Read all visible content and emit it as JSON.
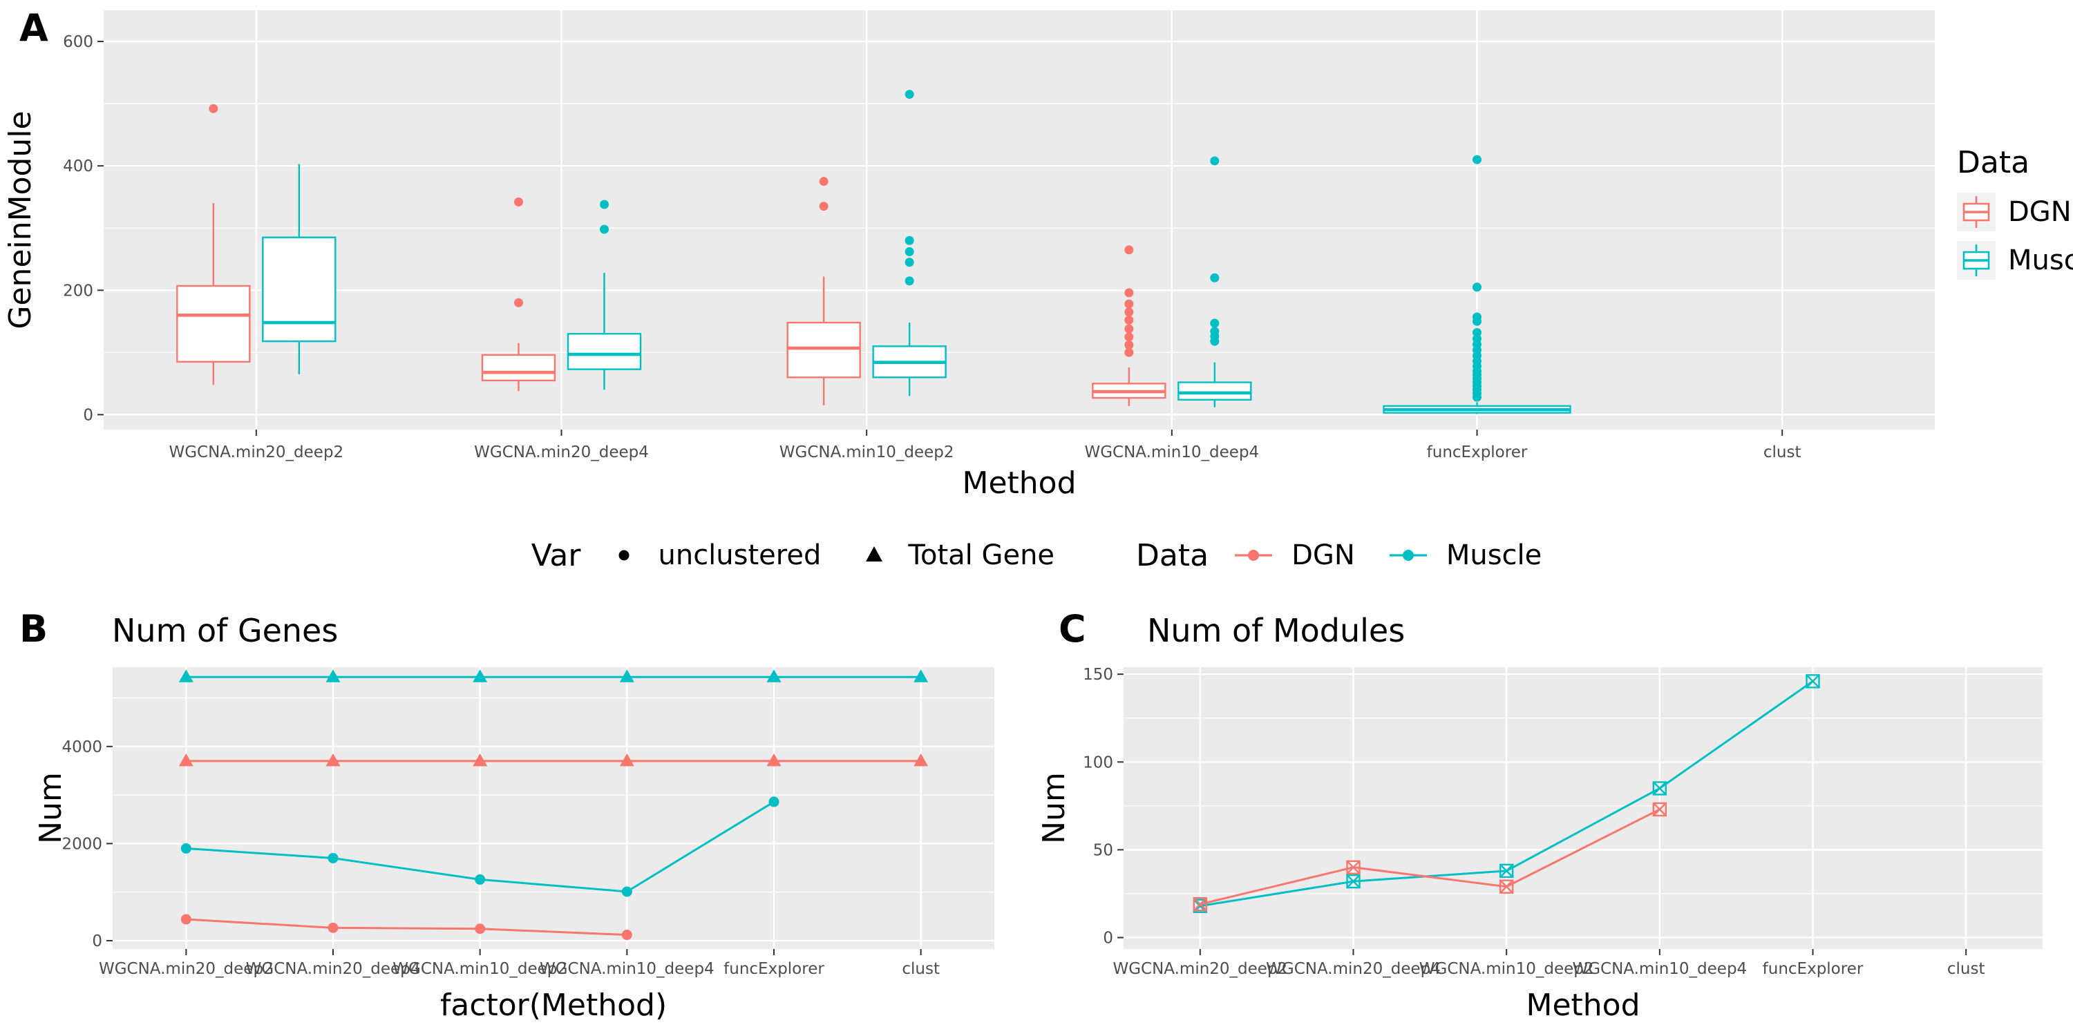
{
  "colors": {
    "dgn": "#F8766D",
    "muscle": "#00BFC4",
    "panel_bg": "#EBEBEB",
    "grid": "#FFFFFF",
    "tick_text": "#4D4D4D",
    "axis_tick": "#333333",
    "text": "#000000",
    "legend_key_bg": "#F2F2F2"
  },
  "panel_a": {
    "label": "A",
    "legend": {
      "title": "Data",
      "items": [
        {
          "label": "DGN",
          "color_key": "dgn"
        },
        {
          "label": "Muscle",
          "color_key": "muscle"
        }
      ]
    }
  },
  "panel_b": {
    "label": "B",
    "title": "Num of Genes"
  },
  "panel_c": {
    "label": "C",
    "title": "Num of Modules"
  },
  "shared_legend": {
    "var_title": "Var",
    "var_items": [
      {
        "marker": "circle",
        "label": "unclustered"
      },
      {
        "marker": "triangle",
        "label": "Total Gene"
      }
    ],
    "data_title": "Data",
    "data_items": [
      {
        "label": "DGN",
        "color_key": "dgn"
      },
      {
        "label": "Muscle",
        "color_key": "muscle"
      }
    ]
  },
  "chart_data": [
    {
      "id": "A",
      "type": "boxplot",
      "panel_label": "A",
      "x_label": "Method",
      "y_label": "GeneinModule",
      "y_ticks": [
        0,
        200,
        400,
        600
      ],
      "y_range": [
        -24,
        650
      ],
      "grid": true,
      "legend_position": "right",
      "categories": [
        "WGCNA.min20_deep2",
        "WGCNA.min20_deep4",
        "WGCNA.min10_deep2",
        "WGCNA.min10_deep4",
        "funcExplorer",
        "clust"
      ],
      "series": [
        {
          "name": "DGN",
          "color_key": "dgn",
          "boxes": [
            {
              "cat": 0,
              "low": 48,
              "q1": 85,
              "median": 160,
              "q3": 207,
              "high": 340,
              "outliers": [
                492
              ]
            },
            {
              "cat": 1,
              "low": 38,
              "q1": 55,
              "median": 68,
              "q3": 96,
              "high": 115,
              "outliers": [
                180,
                342
              ]
            },
            {
              "cat": 2,
              "low": 15,
              "q1": 60,
              "median": 107,
              "q3": 148,
              "high": 222,
              "outliers": [
                335,
                375
              ]
            },
            {
              "cat": 3,
              "low": 14,
              "q1": 27,
              "median": 37,
              "q3": 50,
              "high": 76,
              "outliers": [
                100,
                112,
                125,
                138,
                152,
                165,
                178,
                196,
                265
              ]
            }
          ]
        },
        {
          "name": "Muscle",
          "color_key": "muscle",
          "boxes": [
            {
              "cat": 0,
              "low": 65,
              "q1": 118,
              "median": 148,
              "q3": 285,
              "high": 403,
              "outliers": []
            },
            {
              "cat": 1,
              "low": 40,
              "q1": 73,
              "median": 97,
              "q3": 130,
              "high": 228,
              "outliers": [
                298,
                338
              ]
            },
            {
              "cat": 2,
              "low": 30,
              "q1": 60,
              "median": 84,
              "q3": 110,
              "high": 148,
              "outliers": [
                215,
                245,
                262,
                280,
                515
              ]
            },
            {
              "cat": 3,
              "low": 12,
              "q1": 24,
              "median": 35,
              "q3": 52,
              "high": 84,
              "outliers": [
                118,
                126,
                134,
                147,
                220,
                408
              ]
            },
            {
              "cat": 4,
              "low": 1,
              "q1": 3,
              "median": 8,
              "q3": 14,
              "high": 20,
              "wide": true,
              "outliers": [
                28,
                34,
                40,
                46,
                52,
                58,
                64,
                70,
                78,
                86,
                95,
                104,
                113,
                122,
                132,
                150,
                157,
                205,
                410
              ]
            }
          ]
        }
      ]
    },
    {
      "id": "B",
      "type": "line",
      "panel_label": "B",
      "title": "Num of Genes",
      "x_label": "factor(Method)",
      "y_label": "Num",
      "y_ticks": [
        0,
        2000,
        4000
      ],
      "y_range": [
        -171,
        5633
      ],
      "grid": true,
      "categories": [
        "WGCNA.min20_deep2",
        "WGCNA.min20_deep4",
        "WGCNA.min10_deep2",
        "WGCNA.min10_deep4",
        "funcExplorer",
        "clust"
      ],
      "series": [
        {
          "name": "Total Gene - Muscle",
          "color_key": "muscle",
          "marker": "triangle",
          "values": [
            5430,
            5430,
            5430,
            5430,
            5430,
            5430
          ]
        },
        {
          "name": "Total Gene - DGN",
          "color_key": "dgn",
          "marker": "triangle",
          "values": [
            3700,
            3700,
            3700,
            3700,
            3700,
            3700
          ]
        },
        {
          "name": "unclustered - Muscle",
          "color_key": "muscle",
          "marker": "circle",
          "values": [
            1900,
            1700,
            1260,
            1010,
            2860,
            null
          ]
        },
        {
          "name": "unclustered - DGN",
          "color_key": "dgn",
          "marker": "circle",
          "values": [
            440,
            265,
            245,
            120,
            null,
            null
          ]
        }
      ]
    },
    {
      "id": "C",
      "type": "line",
      "panel_label": "C",
      "title": "Num of Modules",
      "x_label": "Method",
      "y_label": "Num",
      "y_ticks": [
        0,
        50,
        100,
        150
      ],
      "y_range": [
        -6.5,
        154
      ],
      "grid": true,
      "categories": [
        "WGCNA.min20_deep2",
        "WGCNA.min20_deep4",
        "WGCNA.min10_deep2",
        "WGCNA.min10_deep4",
        "funcExplorer",
        "clust"
      ],
      "series": [
        {
          "name": "Muscle",
          "color_key": "muscle",
          "marker": "square-x",
          "values": [
            18,
            32,
            38,
            85,
            146,
            null
          ]
        },
        {
          "name": "DGN",
          "color_key": "dgn",
          "marker": "square-x",
          "values": [
            19,
            40,
            29,
            73,
            null,
            null
          ]
        }
      ]
    }
  ]
}
